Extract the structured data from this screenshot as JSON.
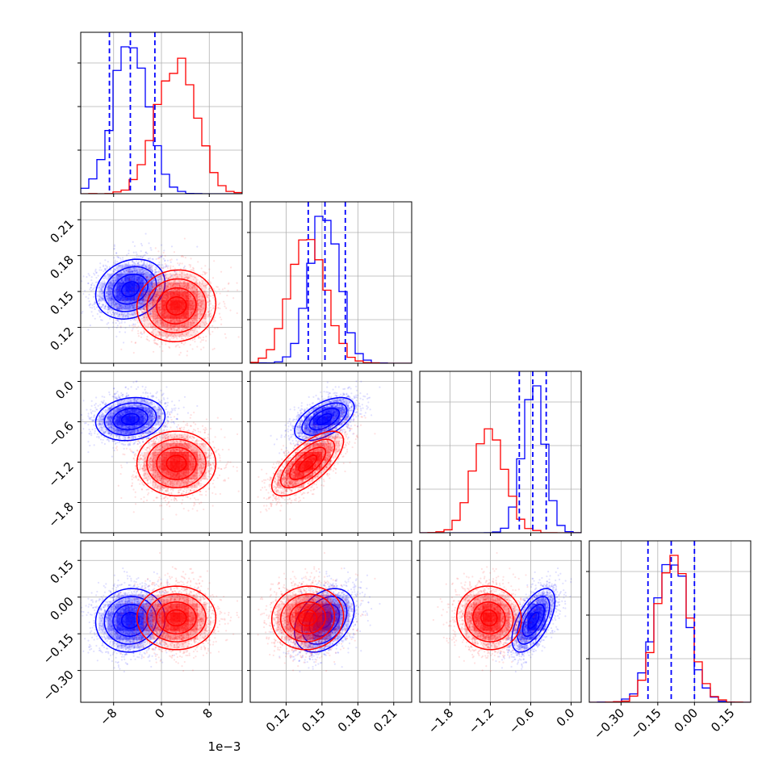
{
  "figure": {
    "offset_text": "1e−3"
  },
  "chart_data": {
    "type": "corner",
    "grid": true,
    "colors": {
      "series_a": "#0000ff",
      "series_b": "#ff0000"
    },
    "parameters": [
      {
        "id": "p0",
        "range": [
          -0.0135,
          0.0135
        ],
        "ticks": [
          -0.008,
          0,
          0.008
        ],
        "tick_labels": [
          "−8",
          "0",
          "8"
        ],
        "scale_offset_label": "1e−3"
      },
      {
        "id": "p1",
        "range": [
          0.09,
          0.225
        ],
        "ticks": [
          0.12,
          0.15,
          0.18,
          0.21
        ],
        "tick_labels": [
          "0.12",
          "0.15",
          "0.18",
          "0.21"
        ]
      },
      {
        "id": "p2",
        "range": [
          -2.25,
          0.15
        ],
        "ticks": [
          -1.8,
          -1.2,
          -0.6,
          0.0
        ],
        "tick_labels": [
          "−1.8",
          "−1.2",
          "−0.6",
          "0.0"
        ]
      },
      {
        "id": "p3",
        "range": [
          -0.43,
          0.23
        ],
        "ticks": [
          -0.3,
          -0.15,
          0.0,
          0.15
        ],
        "tick_labels": [
          "−0.30",
          "−0.15",
          "0.00",
          "0.15"
        ]
      }
    ],
    "series": [
      {
        "color": "#0000ff",
        "means": [
          -0.0052,
          0.152,
          -0.56,
          -0.095
        ],
        "sigmas": [
          0.0029,
          0.0125,
          0.16,
          0.065
        ],
        "correlations": [
          [
            0,
            1,
            0.2
          ],
          [
            1,
            2,
            0.55
          ],
          [
            2,
            3,
            0.6
          ],
          [
            0,
            2,
            0.15
          ],
          [
            0,
            3,
            0.05
          ],
          [
            1,
            3,
            0.35
          ]
        ],
        "quantile_lines": [
          [
            -0.0087,
            -0.0052,
            -0.0011
          ],
          [
            0.1385,
            0.1525,
            0.1695
          ],
          [
            -0.77,
            -0.57,
            -0.37
          ],
          [
            -0.19,
            -0.095,
            0.0
          ]
        ]
      },
      {
        "color": "#ff0000",
        "means": [
          0.0025,
          0.138,
          -1.22,
          -0.085
        ],
        "sigmas": [
          0.0033,
          0.015,
          0.24,
          0.065
        ],
        "correlations": [
          [
            0,
            1,
            0.05
          ],
          [
            1,
            2,
            0.7
          ],
          [
            2,
            3,
            -0.05
          ],
          [
            0,
            2,
            0.0
          ],
          [
            0,
            3,
            0.0
          ],
          [
            1,
            3,
            0.05
          ]
        ]
      }
    ],
    "histogram_bins": 20,
    "contour_levels": [
      0.5,
      1.0,
      1.5,
      2.0
    ],
    "tick_label_rotation_deg": -45
  }
}
